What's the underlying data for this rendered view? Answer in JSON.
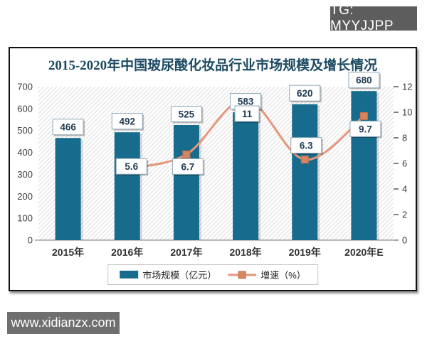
{
  "page": {
    "tg_badge": "TG: MYYJJPP",
    "watermark": "www.xidianzx.com"
  },
  "colors": {
    "bar": "#176b8d",
    "line": "#e5977b",
    "marker": "#d9855f",
    "marker_border": "#c4724a",
    "title": "#1d4a63",
    "label_text": "#1f3a54",
    "label_box_border": "#8fa7b5",
    "axis_text": "#3d3d3d",
    "axis_line": "#a6a6a6",
    "hatch": "#e3e3e3"
  },
  "chart_data": {
    "type": "bar",
    "title": "2015-2020年中国玻尿酸化妆品行业市场规模及增长情况",
    "categories": [
      "2015年",
      "2016年",
      "2017年",
      "2018年",
      "2019年",
      "2020年E"
    ],
    "series": [
      {
        "name": "市场规模（亿元）",
        "type": "bar",
        "axis": "left",
        "values": [
          466,
          492,
          525,
          583,
          620,
          680
        ]
      },
      {
        "name": "增速（%）",
        "type": "line",
        "axis": "right",
        "values": [
          null,
          5.6,
          6.7,
          11,
          6.3,
          9.7
        ]
      }
    ],
    "left_axis": {
      "min": 0,
      "max": 700,
      "step": 100
    },
    "right_axis": {
      "min": 0,
      "max": 12,
      "step": 2
    },
    "grid": false,
    "plot_background": "diagonal-hatch",
    "legend_position": "bottom",
    "rate_label_dy": [
      0,
      -3,
      17,
      20,
      -20,
      18
    ]
  }
}
